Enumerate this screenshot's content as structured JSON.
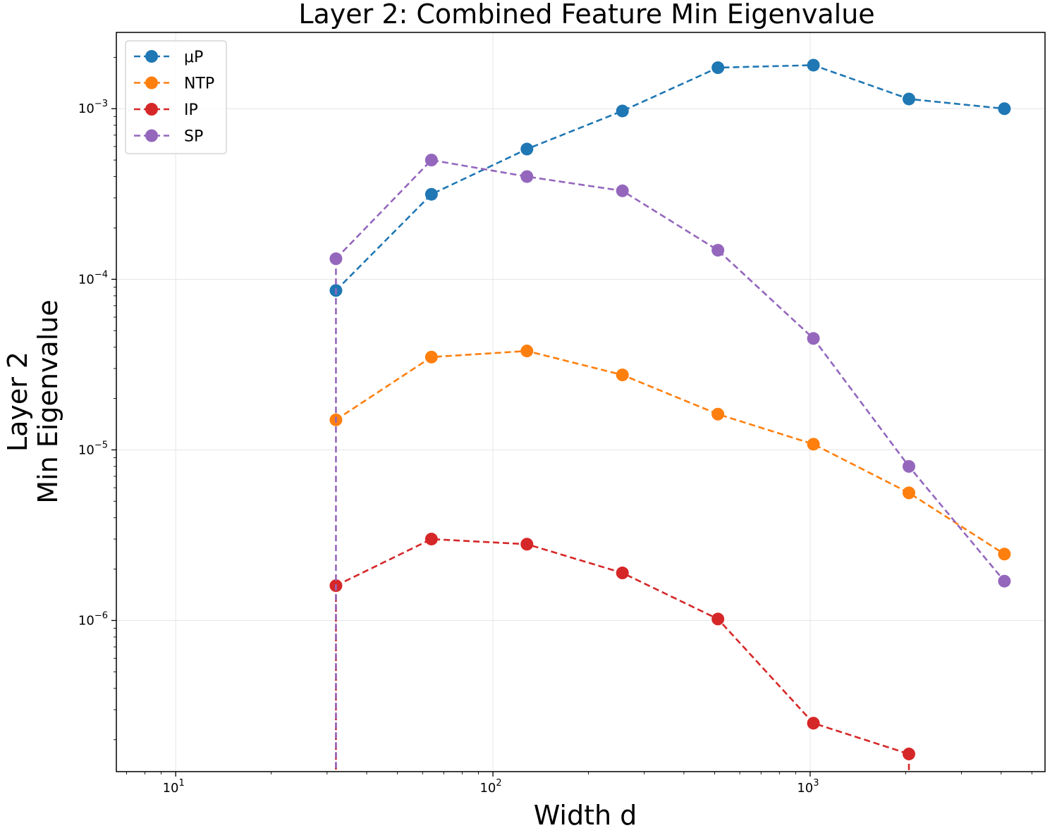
{
  "chart_data": {
    "type": "line",
    "title": "Layer 2: Combined Feature Min Eigenvalue",
    "xlabel": "Width d",
    "ylabel_lines": [
      "Layer 2",
      "Min Eigenvalue"
    ],
    "xscale": "log",
    "yscale": "log",
    "xlim": [
      6.5,
      5500
    ],
    "ylim": [
      1.3e-07,
      0.0028
    ],
    "x_tick_labels": [
      {
        "value": 10,
        "base": "10",
        "exp": "1"
      },
      {
        "value": 100,
        "base": "10",
        "exp": "2"
      },
      {
        "value": 1000,
        "base": "10",
        "exp": "3"
      }
    ],
    "y_tick_labels": [
      {
        "value": 1e-06,
        "base": "10",
        "exp": "−6"
      },
      {
        "value": 1e-05,
        "base": "10",
        "exp": "−5"
      },
      {
        "value": 0.0001,
        "base": "10",
        "exp": "−4"
      },
      {
        "value": 0.001,
        "base": "10",
        "exp": "−3"
      }
    ],
    "grid": true,
    "legend_position": "top-left",
    "series": [
      {
        "name": "μP",
        "color": "#1f77b4",
        "x": [
          32,
          64,
          128,
          256,
          512,
          1024,
          2048,
          4096
        ],
        "y": [
          8.6e-05,
          0.000315,
          0.00058,
          0.00097,
          0.00174,
          0.0018,
          0.00114,
          0.001
        ]
      },
      {
        "name": "NTP",
        "color": "#ff7f0e",
        "x": [
          32,
          64,
          128,
          256,
          512,
          1024,
          2048,
          4096
        ],
        "y": [
          1.5e-05,
          3.5e-05,
          3.8e-05,
          2.75e-05,
          1.62e-05,
          1.08e-05,
          5.6e-06,
          2.45e-06
        ]
      },
      {
        "name": "IP",
        "color": "#d62728",
        "x": [
          32,
          64,
          128,
          256,
          512,
          1024,
          2048
        ],
        "y": [
          1.6e-06,
          3e-06,
          2.8e-06,
          1.9e-06,
          1.02e-06,
          2.5e-07,
          1.65e-07
        ],
        "drop_to_axis": [
          32,
          2048
        ]
      },
      {
        "name": "SP",
        "color": "#9467bd",
        "x": [
          32,
          64,
          128,
          256,
          512,
          1024,
          2048,
          4096
        ],
        "y": [
          0.000132,
          0.0005,
          0.0004,
          0.00033,
          0.000148,
          4.5e-05,
          8e-06,
          1.7e-06
        ],
        "drop_to_axis": [
          32
        ]
      }
    ]
  }
}
